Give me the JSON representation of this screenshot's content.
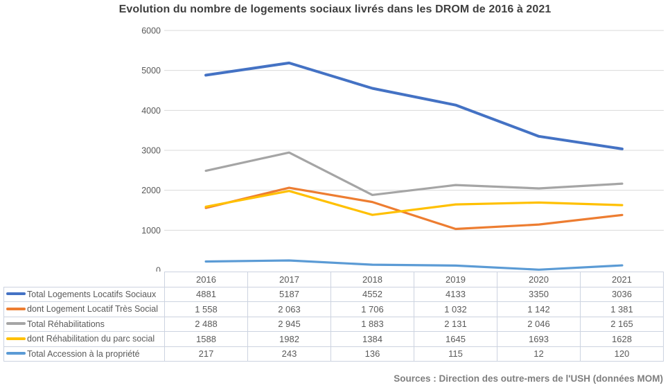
{
  "title": "Evolution du nombre de logements sociaux livrés dans les DROM de 2016 à 2021",
  "source": "Sources : Direction des outre-mers de l'USH (données MOM)",
  "colors": {
    "gridline": "#d9d9d9",
    "axis_text": "#595959",
    "table_border": "#ccd3e0",
    "table_text": "#595959",
    "title_text": "#3f3f3f",
    "source_text": "#7f7f7f"
  },
  "chart_data": {
    "type": "line",
    "title": "Evolution du nombre de logements sociaux livrés dans les DROM de 2016 à 2021",
    "categories": [
      "2016",
      "2017",
      "2018",
      "2019",
      "2020",
      "2021"
    ],
    "series": [
      {
        "name": "Total Logements Locatifs Sociaux",
        "color": "#4472c4",
        "stroke_width": 4,
        "values": [
          4881,
          5187,
          4552,
          4133,
          3350,
          3036
        ],
        "display": [
          "4881",
          "5187",
          "4552",
          "4133",
          "3350",
          "3036"
        ]
      },
      {
        "name": "dont Logement Locatif Très Social",
        "color": "#ed7d31",
        "stroke_width": 3.2,
        "values": [
          1558,
          2063,
          1706,
          1032,
          1142,
          1381
        ],
        "display": [
          "1 558",
          "2 063",
          "1 706",
          "1 032",
          "1 142",
          "1 381"
        ]
      },
      {
        "name": "Total Réhabilitations",
        "color": "#a5a5a5",
        "stroke_width": 3.2,
        "values": [
          2488,
          2945,
          1883,
          2131,
          2046,
          2165
        ],
        "display": [
          "2 488",
          "2 945",
          "1 883",
          "2 131",
          "2 046",
          "2 165"
        ]
      },
      {
        "name": "dont Réhabilitation du parc social",
        "color": "#ffc000",
        "stroke_width": 3.2,
        "values": [
          1588,
          1982,
          1384,
          1645,
          1693,
          1628
        ],
        "display": [
          "1588",
          "1982",
          "1384",
          "1645",
          "1693",
          "1628"
        ]
      },
      {
        "name": "Total Accession à la propriété",
        "color": "#5b9bd5",
        "stroke_width": 3.2,
        "values": [
          217,
          243,
          136,
          115,
          12,
          120
        ],
        "display": [
          "217",
          "243",
          "136",
          "115",
          "12",
          "120"
        ]
      }
    ],
    "xlabel": "",
    "ylabel": "",
    "ylim": [
      0,
      6000
    ],
    "ytick_step": 1000,
    "yticks": [
      "0",
      "1000",
      "2000",
      "3000",
      "4000",
      "5000",
      "6000"
    ],
    "grid": true,
    "legend_position": "table-left"
  }
}
